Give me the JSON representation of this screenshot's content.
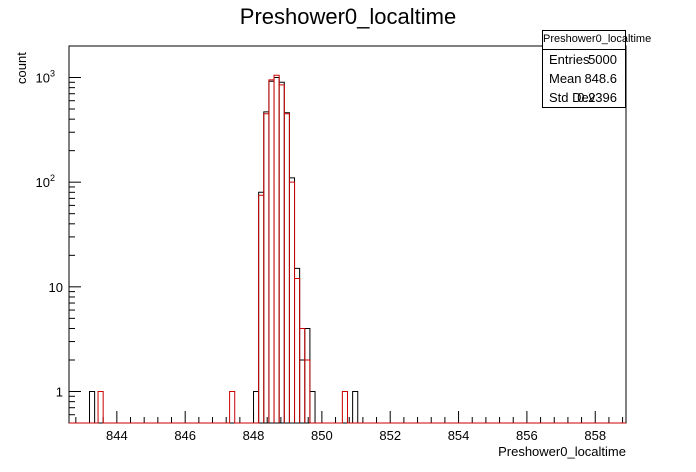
{
  "title": "Preshower0_localtime",
  "stats": {
    "name": "Preshower0_localtime",
    "rows": [
      {
        "label": "Entries",
        "value": "5000"
      },
      {
        "label": "Mean",
        "value": "848.6"
      },
      {
        "label": "Std Dev",
        "value": "0.2396"
      }
    ]
  },
  "chart_data": {
    "type": "histogram",
    "title": "Preshower0_localtime",
    "xlabel": "Preshower0_localtime",
    "ylabel": "count",
    "xlim": [
      842.6,
      858.9
    ],
    "ylim": [
      0.5,
      2000
    ],
    "yscale": "log",
    "x_ticks": [
      "844",
      "846",
      "848",
      "850",
      "852",
      "854",
      "856",
      "858"
    ],
    "y_ticks": [
      {
        "value": 1,
        "label": "1",
        "sup": ""
      },
      {
        "value": 10,
        "label": "10",
        "sup": ""
      },
      {
        "value": 100,
        "label": "10",
        "sup": "2"
      },
      {
        "value": 1000,
        "label": "10",
        "sup": "3"
      }
    ],
    "series": [
      {
        "color": "#000000",
        "bins": [
          {
            "x0": 843.2,
            "x1": 843.35,
            "y": 1
          },
          {
            "x0": 848.0,
            "x1": 848.15,
            "y": 1
          },
          {
            "x0": 848.15,
            "x1": 848.3,
            "y": 80
          },
          {
            "x0": 848.3,
            "x1": 848.45,
            "y": 470
          },
          {
            "x0": 848.45,
            "x1": 848.6,
            "y": 920
          },
          {
            "x0": 848.6,
            "x1": 848.75,
            "y": 1000
          },
          {
            "x0": 848.75,
            "x1": 848.9,
            "y": 900
          },
          {
            "x0": 848.9,
            "x1": 849.05,
            "y": 460
          },
          {
            "x0": 849.05,
            "x1": 849.2,
            "y": 110
          },
          {
            "x0": 849.2,
            "x1": 849.35,
            "y": 15
          },
          {
            "x0": 849.35,
            "x1": 849.5,
            "y": 2
          },
          {
            "x0": 849.5,
            "x1": 849.65,
            "y": 4
          },
          {
            "x0": 849.65,
            "x1": 849.8,
            "y": 1
          },
          {
            "x0": 850.9,
            "x1": 851.05,
            "y": 1
          }
        ]
      },
      {
        "color": "#cc0000",
        "bins": [
          {
            "x0": 843.45,
            "x1": 843.6,
            "y": 1
          },
          {
            "x0": 847.3,
            "x1": 847.45,
            "y": 1
          },
          {
            "x0": 848.15,
            "x1": 848.3,
            "y": 75
          },
          {
            "x0": 848.3,
            "x1": 848.45,
            "y": 450
          },
          {
            "x0": 848.45,
            "x1": 848.6,
            "y": 950
          },
          {
            "x0": 848.6,
            "x1": 848.75,
            "y": 1050
          },
          {
            "x0": 848.75,
            "x1": 848.9,
            "y": 850
          },
          {
            "x0": 848.9,
            "x1": 849.05,
            "y": 450
          },
          {
            "x0": 849.05,
            "x1": 849.2,
            "y": 100
          },
          {
            "x0": 849.2,
            "x1": 849.35,
            "y": 12
          },
          {
            "x0": 849.35,
            "x1": 849.5,
            "y": 4
          },
          {
            "x0": 849.5,
            "x1": 849.65,
            "y": 2
          },
          {
            "x0": 850.6,
            "x1": 850.75,
            "y": 1
          }
        ]
      }
    ]
  }
}
